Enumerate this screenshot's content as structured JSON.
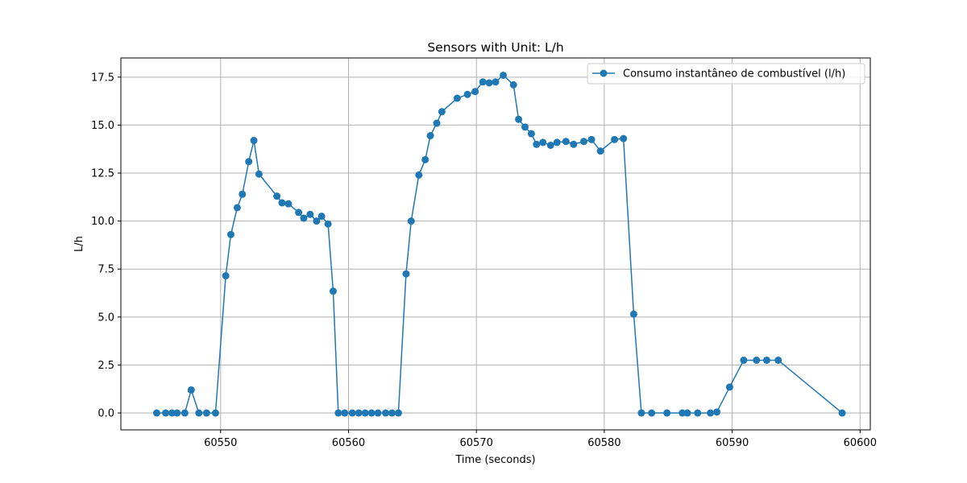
{
  "chart_data": {
    "type": "line",
    "title": "Sensors with Unit: L/h",
    "xlabel": "Time (seconds)",
    "ylabel": "L/h",
    "xlim": [
      60542.2,
      60600.8
    ],
    "ylim": [
      -0.88,
      18.5
    ],
    "xticks": [
      60550,
      60560,
      60570,
      60580,
      60590,
      60600
    ],
    "yticks": [
      0.0,
      2.5,
      5.0,
      7.5,
      10.0,
      12.5,
      15.0,
      17.5
    ],
    "xtick_labels": [
      "60550",
      "60560",
      "60570",
      "60580",
      "60590",
      "60600"
    ],
    "ytick_labels": [
      "0.0",
      "2.5",
      "5.0",
      "7.5",
      "10.0",
      "12.5",
      "15.0",
      "17.5"
    ],
    "grid": true,
    "legend_position": "top-right",
    "series": [
      {
        "name": "Consumo instantâneo de combustível (l/h)",
        "color": "#1f77b4",
        "marker": "circle",
        "x": [
          60545.0,
          60545.7,
          60546.2,
          60546.6,
          60547.2,
          60547.7,
          60548.3,
          60548.9,
          60549.6,
          60550.4,
          60550.8,
          60551.3,
          60551.7,
          60552.2,
          60552.6,
          60553.0,
          60554.4,
          60554.8,
          60555.3,
          60556.1,
          60556.5,
          60557.0,
          60557.5,
          60557.9,
          60558.4,
          60558.8,
          60559.2,
          60559.7,
          60560.3,
          60560.8,
          60561.3,
          60561.8,
          60562.3,
          60562.9,
          60563.4,
          60563.9,
          60564.5,
          60564.9,
          60565.5,
          60566.0,
          60566.4,
          60566.9,
          60567.3,
          60568.5,
          60569.3,
          60569.9,
          60570.5,
          60571.0,
          60571.5,
          60572.1,
          60572.9,
          60573.3,
          60573.8,
          60574.3,
          60574.7,
          60575.2,
          60575.8,
          60576.3,
          60577.0,
          60577.6,
          60578.4,
          60579.0,
          60579.7,
          60580.8,
          60581.5,
          60582.3,
          60582.9,
          60583.7,
          60584.9,
          60586.1,
          60586.5,
          60587.3,
          60588.3,
          60588.8,
          60589.8,
          60590.9,
          60591.9,
          60592.7,
          60593.6,
          60598.6
        ],
        "y": [
          0.0,
          0.0,
          0.0,
          0.0,
          0.0,
          1.2,
          0.0,
          0.0,
          0.0,
          7.15,
          9.3,
          10.7,
          11.4,
          13.1,
          14.2,
          12.45,
          11.3,
          10.95,
          10.9,
          10.45,
          10.15,
          10.35,
          10.0,
          10.25,
          9.85,
          6.35,
          0.0,
          0.0,
          0.0,
          0.0,
          0.0,
          0.0,
          0.0,
          0.0,
          0.0,
          0.0,
          7.25,
          10.0,
          12.4,
          13.2,
          14.45,
          15.1,
          15.7,
          16.4,
          16.6,
          16.75,
          17.25,
          17.2,
          17.25,
          17.6,
          17.1,
          15.3,
          14.9,
          14.55,
          14.0,
          14.1,
          13.95,
          14.1,
          14.15,
          14.0,
          14.15,
          14.25,
          13.65,
          14.25,
          14.3,
          5.15,
          0.0,
          0.0,
          0.0,
          0.0,
          0.0,
          0.0,
          0.0,
          0.05,
          1.35,
          2.75,
          2.75,
          2.75,
          2.75,
          0.0
        ]
      }
    ]
  }
}
